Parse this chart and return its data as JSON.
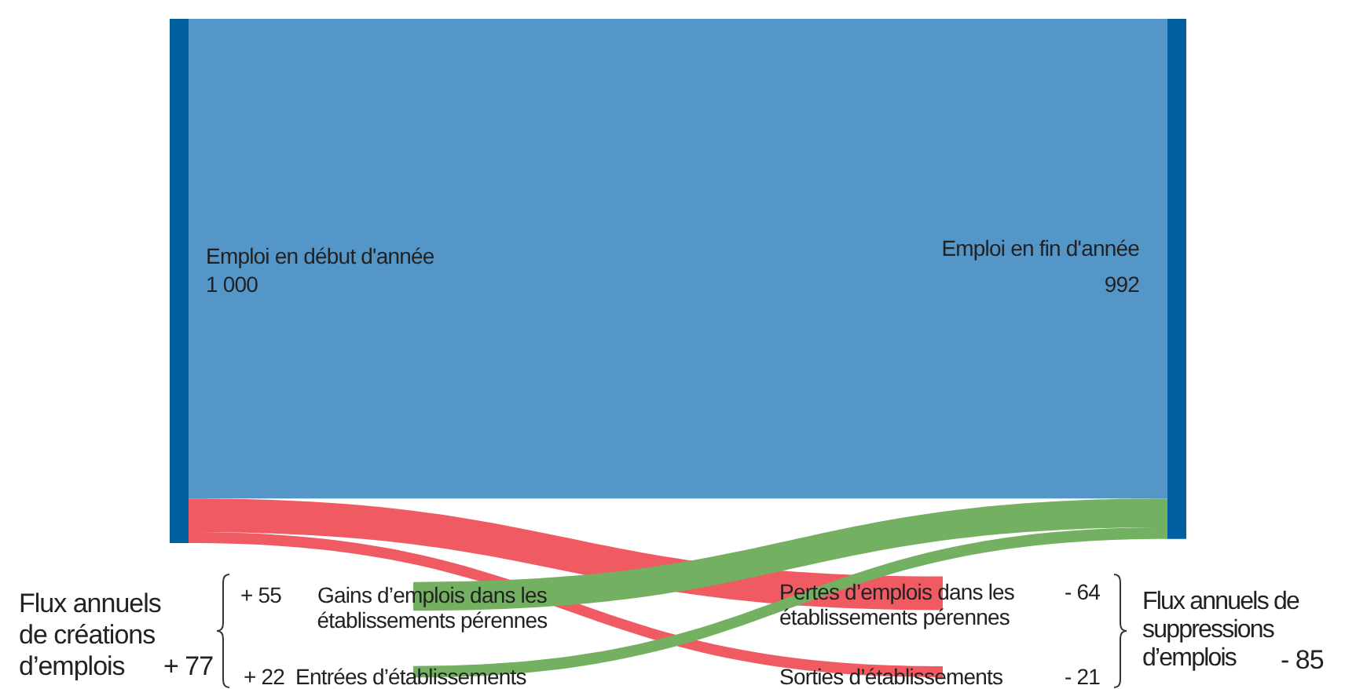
{
  "chart_data": {
    "type": "other",
    "categories": [
      "Emploi en début d'année",
      "Emploi en fin d'année",
      "Gains d’emplois dans les établissements pérennes",
      "Entrées d’établissements",
      "Pertes d’emplois dans les établissements pérennes",
      "Sorties d’établissements"
    ],
    "values": [
      1000,
      992,
      55,
      22,
      -64,
      -21
    ],
    "value_labels": [
      "1 000",
      "992",
      "+ 55",
      "+ 22",
      "- 64",
      "- 21"
    ],
    "colors": [
      "#5596c9",
      "#005f9e",
      "#74b062",
      "#74b062",
      "#f05a63",
      "#f05a63"
    ],
    "color": "#005f9e",
    "annotations": [
      "Flux annuels de créations d’emplois",
      "+ 77",
      "Flux annuels de suppressions d’emplois",
      "- 85"
    ]
  }
}
